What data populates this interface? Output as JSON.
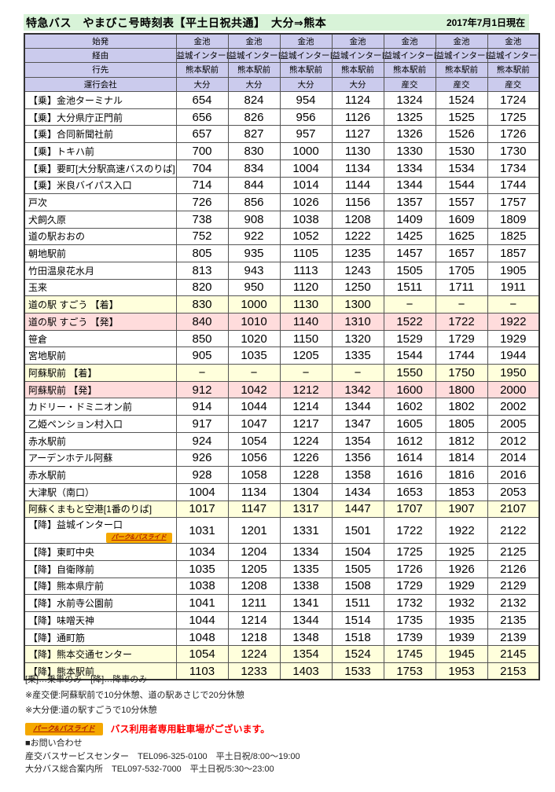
{
  "title": "特急バス　やまびこ号時刻表【平土日祝共通】　大分⇒熊本",
  "date_note": "2017年7月1日現在",
  "colors": {
    "title_bg": "#d8f3d8",
    "header_bg": "#cbcbed",
    "arrive_row_bg": "#ffffdc",
    "depart_row_bg": "#ffdcdc",
    "badge_bg": "#f5a800",
    "badge_text": "#b22200",
    "note_red": "#ff0000"
  },
  "park_ride_badge": {
    "label": "パーク&バスライド"
  },
  "table": {
    "header_rows": [
      {
        "label": "始発",
        "values": [
          "金池",
          "金池",
          "金池",
          "金池",
          "金池",
          "金池",
          "金池"
        ]
      },
      {
        "label": "経由",
        "values": [
          "益城インター口",
          "益城インター口",
          "益城インター口",
          "益城インター口",
          "益城インター口",
          "益城インター口",
          "益城インター口"
        ]
      },
      {
        "label": "行先",
        "values": [
          "熊本駅前",
          "熊本駅前",
          "熊本駅前",
          "熊本駅前",
          "熊本駅前",
          "熊本駅前",
          "熊本駅前"
        ]
      },
      {
        "label": "運行会社",
        "values": [
          "大分",
          "大分",
          "大分",
          "大分",
          "産交",
          "産交",
          "産交"
        ]
      }
    ],
    "rows": [
      {
        "station": "【乗】金池ターミナル",
        "times": [
          "654",
          "824",
          "954",
          "1124",
          "1324",
          "1524",
          "1724"
        ],
        "bg": "white"
      },
      {
        "station": "【乗】大分県庁正門前",
        "times": [
          "656",
          "826",
          "956",
          "1126",
          "1325",
          "1525",
          "1725"
        ],
        "bg": "white"
      },
      {
        "station": "【乗】合同新聞社前",
        "times": [
          "657",
          "827",
          "957",
          "1127",
          "1326",
          "1526",
          "1726"
        ],
        "bg": "white"
      },
      {
        "station": "【乗】トキハ前",
        "times": [
          "700",
          "830",
          "1000",
          "1130",
          "1330",
          "1530",
          "1730"
        ],
        "bg": "white"
      },
      {
        "station": "【乗】要町[大分駅高速バスのりば]",
        "times": [
          "704",
          "834",
          "1004",
          "1134",
          "1334",
          "1534",
          "1734"
        ],
        "bg": "white"
      },
      {
        "station": "【乗】米良バイパス入口",
        "times": [
          "714",
          "844",
          "1014",
          "1144",
          "1344",
          "1544",
          "1744"
        ],
        "bg": "white"
      },
      {
        "station": "戸次",
        "times": [
          "726",
          "856",
          "1026",
          "1156",
          "1357",
          "1557",
          "1757"
        ],
        "bg": "white"
      },
      {
        "station": "犬飼久原",
        "times": [
          "738",
          "908",
          "1038",
          "1208",
          "1409",
          "1609",
          "1809"
        ],
        "bg": "white"
      },
      {
        "station": "道の駅おおの",
        "times": [
          "752",
          "922",
          "1052",
          "1222",
          "1425",
          "1625",
          "1825"
        ],
        "bg": "white"
      },
      {
        "station": "朝地駅前",
        "times": [
          "805",
          "935",
          "1105",
          "1235",
          "1457",
          "1657",
          "1857"
        ],
        "bg": "white"
      },
      {
        "station": "竹田温泉花水月",
        "times": [
          "813",
          "943",
          "1113",
          "1243",
          "1505",
          "1705",
          "1905"
        ],
        "bg": "white"
      },
      {
        "station": "玉来",
        "times": [
          "820",
          "950",
          "1120",
          "1250",
          "1511",
          "1711",
          "1911"
        ],
        "bg": "white"
      },
      {
        "station": "道の駅 すごう 【着】",
        "times": [
          "830",
          "1000",
          "1130",
          "1300",
          "−",
          "−",
          "−"
        ],
        "bg": "yellow"
      },
      {
        "station": "道の駅 すごう 【発】",
        "times": [
          "840",
          "1010",
          "1140",
          "1310",
          "1522",
          "1722",
          "1922"
        ],
        "bg": "pink"
      },
      {
        "station": "笹倉",
        "times": [
          "850",
          "1020",
          "1150",
          "1320",
          "1529",
          "1729",
          "1929"
        ],
        "bg": "white"
      },
      {
        "station": "宮地駅前",
        "times": [
          "905",
          "1035",
          "1205",
          "1335",
          "1544",
          "1744",
          "1944"
        ],
        "bg": "white"
      },
      {
        "station": "阿蘇駅前 【着】",
        "times": [
          "−",
          "−",
          "−",
          "−",
          "1550",
          "1750",
          "1950"
        ],
        "bg": "yellow"
      },
      {
        "station": "阿蘇駅前 【発】",
        "times": [
          "912",
          "1042",
          "1212",
          "1342",
          "1600",
          "1800",
          "2000"
        ],
        "bg": "pink"
      },
      {
        "station": "カドリー・ドミニオン前",
        "times": [
          "914",
          "1044",
          "1214",
          "1344",
          "1602",
          "1802",
          "2002"
        ],
        "bg": "white"
      },
      {
        "station": "乙姫ペンション村入口",
        "times": [
          "917",
          "1047",
          "1217",
          "1347",
          "1605",
          "1805",
          "2005"
        ],
        "bg": "white"
      },
      {
        "station": "赤水駅前",
        "times": [
          "924",
          "1054",
          "1224",
          "1354",
          "1612",
          "1812",
          "2012"
        ],
        "bg": "white"
      },
      {
        "station": "アーデンホテル阿蘇",
        "times": [
          "926",
          "1056",
          "1226",
          "1356",
          "1614",
          "1814",
          "2014"
        ],
        "bg": "white"
      },
      {
        "station": "赤水駅前",
        "times": [
          "928",
          "1058",
          "1228",
          "1358",
          "1616",
          "1816",
          "2016"
        ],
        "bg": "white"
      },
      {
        "station": "大津駅（南口）",
        "times": [
          "1004",
          "1134",
          "1304",
          "1434",
          "1653",
          "1853",
          "2053"
        ],
        "bg": "white"
      },
      {
        "station": "阿蘇くまもと空港[1番のりば]",
        "times": [
          "1017",
          "1147",
          "1317",
          "1447",
          "1707",
          "1907",
          "2107"
        ],
        "bg": "yellow"
      },
      {
        "station": "【降】益城インター口",
        "times": [
          "1031",
          "1201",
          "1331",
          "1501",
          "1722",
          "1922",
          "2122"
        ],
        "bg": "white",
        "badge": true
      },
      {
        "station": "【降】東町中央",
        "times": [
          "1034",
          "1204",
          "1334",
          "1504",
          "1725",
          "1925",
          "2125"
        ],
        "bg": "white"
      },
      {
        "station": "【降】自衛隊前",
        "times": [
          "1035",
          "1205",
          "1335",
          "1505",
          "1726",
          "1926",
          "2126"
        ],
        "bg": "white"
      },
      {
        "station": "【降】熊本県庁前",
        "times": [
          "1038",
          "1208",
          "1338",
          "1508",
          "1729",
          "1929",
          "2129"
        ],
        "bg": "white"
      },
      {
        "station": "【降】水前寺公園前",
        "times": [
          "1041",
          "1211",
          "1341",
          "1511",
          "1732",
          "1932",
          "2132"
        ],
        "bg": "white"
      },
      {
        "station": "【降】味噌天神",
        "times": [
          "1044",
          "1214",
          "1344",
          "1514",
          "1735",
          "1935",
          "2135"
        ],
        "bg": "white"
      },
      {
        "station": "【降】通町筋",
        "times": [
          "1048",
          "1218",
          "1348",
          "1518",
          "1739",
          "1939",
          "2139"
        ],
        "bg": "white"
      },
      {
        "station": "【降】熊本交通センター",
        "times": [
          "1054",
          "1224",
          "1354",
          "1524",
          "1745",
          "1945",
          "2145"
        ],
        "bg": "yellow"
      },
      {
        "station": "【降】熊本駅前",
        "times": [
          "1103",
          "1233",
          "1403",
          "1533",
          "1753",
          "1953",
          "2153"
        ],
        "bg": "yellow"
      }
    ]
  },
  "notes": {
    "legend": "[乗]…乗車のみ　[降]…降車のみ",
    "sanko": "※産交便:阿蘇駅前で10分休憩、道の駅あさじで20分休憩",
    "oita": "※大分便:道の駅すごうで10分休憩",
    "parking": "バス利用者専用駐車場がございます。"
  },
  "contact": {
    "heading": "■お問い合わせ",
    "sanko": "産交バスサービスセンター　TEL096-325-0100　平土日祝/8:00～19:00",
    "oita": "大分バス総合案内所　TEL097-532-7000　平土日祝/5:30～23:00"
  }
}
